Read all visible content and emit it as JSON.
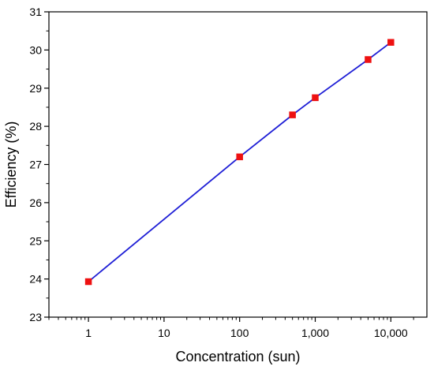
{
  "chart_data": {
    "type": "line",
    "x_scale": "log",
    "xlabel": "Concentration (sun)",
    "ylabel": "Efficiency (%)",
    "xlim": [
      0.3,
      30000
    ],
    "ylim": [
      23,
      31
    ],
    "grid": false,
    "x_ticks": [
      {
        "value": 1,
        "label": "1"
      },
      {
        "value": 10,
        "label": "10"
      },
      {
        "value": 100,
        "label": "100"
      },
      {
        "value": 1000,
        "label": "1,000"
      },
      {
        "value": 10000,
        "label": "10,000"
      }
    ],
    "y_ticks": [
      {
        "value": 23,
        "label": "23"
      },
      {
        "value": 24,
        "label": "24"
      },
      {
        "value": 25,
        "label": "25"
      },
      {
        "value": 26,
        "label": "26"
      },
      {
        "value": 27,
        "label": "27"
      },
      {
        "value": 28,
        "label": "28"
      },
      {
        "value": 29,
        "label": "29"
      },
      {
        "value": 30,
        "label": "30"
      },
      {
        "value": 31,
        "label": "31"
      }
    ],
    "series": [
      {
        "line_color": "#1f1fd6",
        "marker": "square",
        "marker_color": "#ee1111",
        "x": [
          1,
          100,
          500,
          1000,
          5000,
          10000
        ],
        "y": [
          23.93,
          27.2,
          28.3,
          28.75,
          29.75,
          30.2
        ]
      }
    ]
  }
}
